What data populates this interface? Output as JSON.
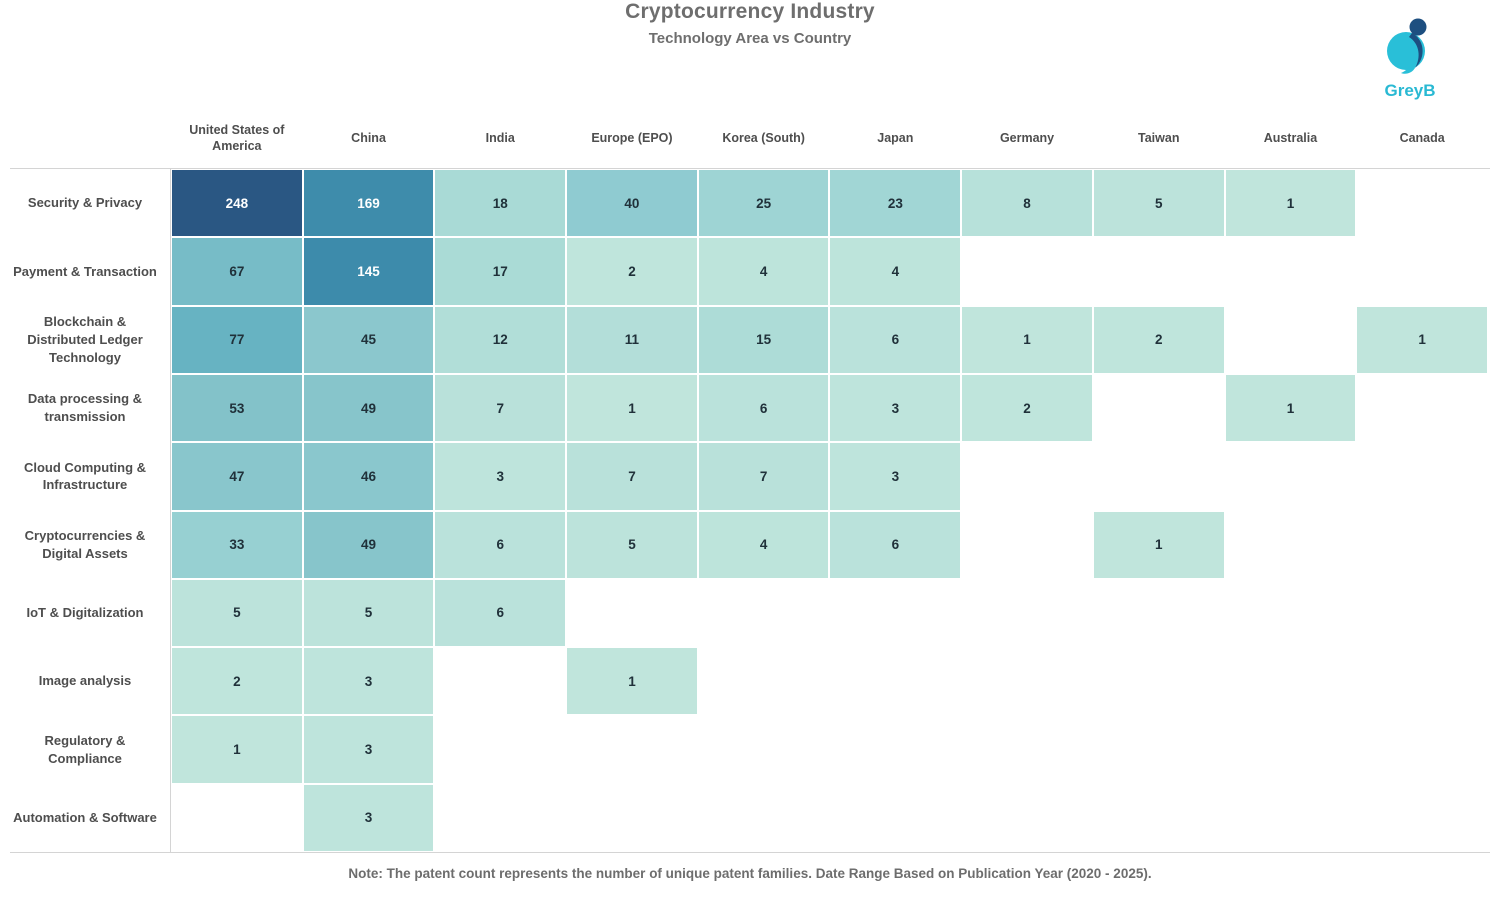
{
  "header": {
    "title": "Cryptocurrency Industry",
    "subtitle": "Technology Area vs Country",
    "logo_text": "GreyB"
  },
  "chart_data": {
    "type": "heatmap",
    "title": "Cryptocurrency Industry",
    "subtitle": "Technology Area vs Country",
    "columns": [
      "United States of America",
      "China",
      "India",
      "Europe (EPO)",
      "Korea (South)",
      "Japan",
      "Germany",
      "Taiwan",
      "Australia",
      "Canada"
    ],
    "rows": [
      "Security & Privacy",
      "Payment & Transaction",
      "Blockchain & Distributed Ledger Technology",
      "Data processing & transmission",
      "Cloud Computing & Infrastructure",
      "Cryptocurrencies & Digital Assets",
      "IoT & Digitalization",
      "Image analysis",
      "Regulatory & Compliance",
      "Automation & Software"
    ],
    "values": [
      [
        248,
        169,
        18,
        40,
        25,
        23,
        8,
        5,
        1,
        null
      ],
      [
        67,
        145,
        17,
        2,
        4,
        4,
        null,
        null,
        null,
        null
      ],
      [
        77,
        45,
        12,
        11,
        15,
        6,
        1,
        2,
        null,
        1
      ],
      [
        53,
        49,
        7,
        1,
        6,
        3,
        2,
        null,
        1,
        null
      ],
      [
        47,
        46,
        3,
        7,
        7,
        3,
        null,
        null,
        null,
        null
      ],
      [
        33,
        49,
        6,
        5,
        4,
        6,
        null,
        1,
        null,
        null
      ],
      [
        5,
        5,
        6,
        null,
        null,
        null,
        null,
        null,
        null,
        null
      ],
      [
        2,
        3,
        null,
        1,
        null,
        null,
        null,
        null,
        null,
        null
      ],
      [
        1,
        3,
        null,
        null,
        null,
        null,
        null,
        null,
        null,
        null
      ],
      [
        null,
        3,
        null,
        null,
        null,
        null,
        null,
        null,
        null,
        null
      ]
    ],
    "color_scale": {
      "stops": [
        [
          1,
          "#c0e5dc"
        ],
        [
          5,
          "#bce3db"
        ],
        [
          10,
          "#b4dfd9"
        ],
        [
          18,
          "#a9dad6"
        ],
        [
          25,
          "#9ed4d4"
        ],
        [
          33,
          "#97d0d2"
        ],
        [
          40,
          "#8fcbd1"
        ],
        [
          47,
          "#89c6cc"
        ],
        [
          53,
          "#83c2c9"
        ],
        [
          67,
          "#77bcc7"
        ],
        [
          77,
          "#67b3c2"
        ],
        [
          145,
          "#3d8bab"
        ],
        [
          169,
          "#3e8cab"
        ],
        [
          248,
          "#2a5783"
        ]
      ],
      "text_dark": "#20313a",
      "text_light": "#ffffff",
      "light_text_threshold": 100
    },
    "legend_position": "none",
    "grid": false
  },
  "brand": {
    "cyan": "#29bfd8",
    "navy": "#1d4f80"
  },
  "footer": {
    "note": "Note: The patent count represents the number of unique patent families. Date Range Based on Publication Year (2020 - 2025)."
  }
}
